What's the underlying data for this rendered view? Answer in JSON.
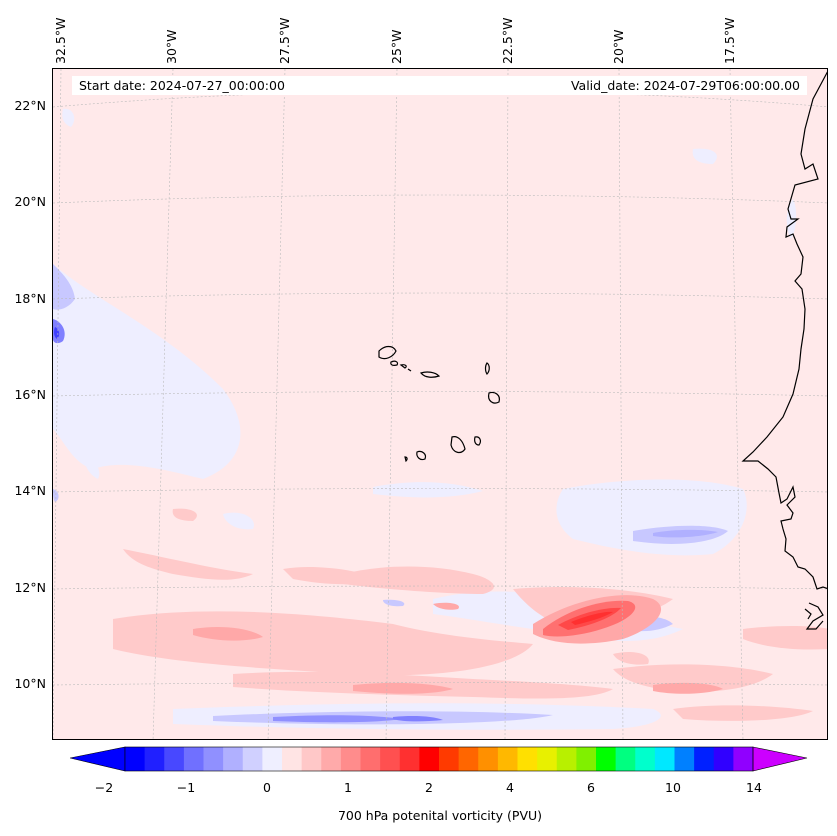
{
  "map": {
    "start_date": "Start date: 2024-07-27_00:00:00",
    "valid_date": "Valid_date: 2024-07-29T06:00:00.00",
    "lon_labels": [
      "32.5°W",
      "30°W",
      "27.5°W",
      "25°W",
      "22.5°W",
      "20°W",
      "17.5°W"
    ],
    "lat_labels": [
      "22°N",
      "20°N",
      "18°N",
      "16°N",
      "14°N",
      "12°N",
      "10°N"
    ],
    "background_color": "#ffe9ea",
    "coastline_color": "#000000"
  },
  "colorbar": {
    "label": "700 hPa potenital vorticity (PVU)",
    "tick_labels": [
      "−2",
      "−1",
      "0",
      "1",
      "2",
      "4",
      "6",
      "10",
      "14"
    ],
    "colors": [
      "#0000ff",
      "#2020ff",
      "#4848ff",
      "#7070ff",
      "#9090ff",
      "#b0b0ff",
      "#d0d0ff",
      "#efefff",
      "#ffe4e4",
      "#ffc8c8",
      "#ffaaaa",
      "#ff8c8c",
      "#ff6e6e",
      "#ff5050",
      "#ff3030",
      "#ff0000",
      "#ff3a00",
      "#ff6600",
      "#ff9000",
      "#ffb800",
      "#ffe000",
      "#e8f000",
      "#b8f000",
      "#80f000",
      "#00ff00",
      "#00ff80",
      "#00ffcc",
      "#00e8ff",
      "#0080ff",
      "#0020ff",
      "#3000ff",
      "#9000ff"
    ],
    "min_extend_color": "#0000ff",
    "max_extend_color": "#cc00ff"
  }
}
